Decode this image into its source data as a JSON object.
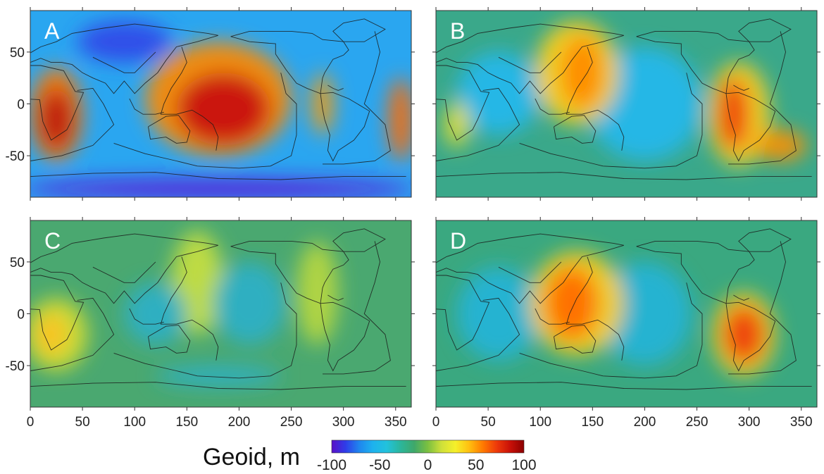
{
  "figure": {
    "colorbar": {
      "title": "Geoid, m",
      "ticks": [
        "-100",
        "-50",
        "0",
        "50",
        "100"
      ],
      "range": [
        -100,
        100
      ],
      "colors": [
        "#5a10c8",
        "#2f3ce8",
        "#1f86ee",
        "#1db2ee",
        "#22c2dc",
        "#2bb69c",
        "#3fa86a",
        "#7cc040",
        "#cfe03a",
        "#f5f02a",
        "#ffc010",
        "#ff7a00",
        "#ee3a0a",
        "#c81008",
        "#8b0000"
      ]
    },
    "axes": {
      "x_ticks": [
        "0",
        "50",
        "100",
        "150",
        "200",
        "250",
        "300",
        "350"
      ],
      "y_ticks": [
        "50",
        "0",
        "-50"
      ]
    },
    "panels": [
      {
        "label": "A",
        "background": "#2aa6f0",
        "blobs": [
          {
            "lon": 180,
            "lat": 5,
            "rx": 70,
            "ry": 55,
            "color": "#ff8a00"
          },
          {
            "lon": 185,
            "lat": -5,
            "rx": 45,
            "ry": 35,
            "color": "#c81010"
          },
          {
            "lon": 25,
            "lat": -10,
            "rx": 25,
            "ry": 45,
            "color": "#ff7a00"
          },
          {
            "lon": 25,
            "lat": -15,
            "rx": 16,
            "ry": 30,
            "color": "#b81010"
          },
          {
            "lon": 355,
            "lat": -15,
            "rx": 12,
            "ry": 40,
            "color": "#ff6a00"
          },
          {
            "lon": 280,
            "lat": 0,
            "rx": 10,
            "ry": 30,
            "color": "#ff9a00"
          },
          {
            "lon": 180,
            "lat": -82,
            "rx": 190,
            "ry": 10,
            "color": "#5a20d8"
          },
          {
            "lon": 90,
            "lat": 60,
            "rx": 45,
            "ry": 20,
            "color": "#3048e8"
          }
        ]
      },
      {
        "label": "B",
        "background": "#3aa88a",
        "blobs": [
          {
            "lon": 200,
            "lat": 0,
            "rx": 55,
            "ry": 55,
            "color": "#22b8ee"
          },
          {
            "lon": 60,
            "lat": 10,
            "rx": 40,
            "ry": 40,
            "color": "#22b8ee"
          },
          {
            "lon": 135,
            "lat": 30,
            "rx": 40,
            "ry": 50,
            "color": "#ffd020"
          },
          {
            "lon": 140,
            "lat": 30,
            "rx": 20,
            "ry": 35,
            "color": "#ff8a00"
          },
          {
            "lon": 290,
            "lat": -10,
            "rx": 30,
            "ry": 50,
            "color": "#ffd020"
          },
          {
            "lon": 285,
            "lat": -10,
            "rx": 15,
            "ry": 35,
            "color": "#ee3a0a"
          },
          {
            "lon": 330,
            "lat": -40,
            "rx": 25,
            "ry": 15,
            "color": "#ff9000"
          },
          {
            "lon": 20,
            "lat": -20,
            "rx": 12,
            "ry": 22,
            "color": "#e8e030"
          }
        ]
      },
      {
        "label": "C",
        "background": "#4aa870",
        "blobs": [
          {
            "lon": 25,
            "lat": -20,
            "rx": 30,
            "ry": 35,
            "color": "#d8e030"
          },
          {
            "lon": 20,
            "lat": -20,
            "rx": 14,
            "ry": 20,
            "color": "#ffc020"
          },
          {
            "lon": 160,
            "lat": 30,
            "rx": 25,
            "ry": 50,
            "color": "#c8e040"
          },
          {
            "lon": 275,
            "lat": 20,
            "rx": 20,
            "ry": 50,
            "color": "#b8d840"
          },
          {
            "lon": 120,
            "lat": 0,
            "rx": 30,
            "ry": 30,
            "color": "#2ab0c8"
          },
          {
            "lon": 210,
            "lat": 10,
            "rx": 35,
            "ry": 40,
            "color": "#2ab0c8"
          },
          {
            "lon": 180,
            "lat": -60,
            "rx": 60,
            "ry": 10,
            "color": "#2ab0c8"
          }
        ]
      },
      {
        "label": "D",
        "background": "#3aa880",
        "blobs": [
          {
            "lon": 60,
            "lat": 0,
            "rx": 40,
            "ry": 45,
            "color": "#22b4d8"
          },
          {
            "lon": 200,
            "lat": 0,
            "rx": 45,
            "ry": 50,
            "color": "#22b4d8"
          },
          {
            "lon": 135,
            "lat": 10,
            "rx": 45,
            "ry": 50,
            "color": "#ffd020"
          },
          {
            "lon": 130,
            "lat": 10,
            "rx": 25,
            "ry": 35,
            "color": "#ff6a00"
          },
          {
            "lon": 295,
            "lat": -20,
            "rx": 30,
            "ry": 40,
            "color": "#ffd020"
          },
          {
            "lon": 295,
            "lat": -20,
            "rx": 20,
            "ry": 28,
            "color": "#ee3a0a"
          }
        ]
      }
    ]
  }
}
